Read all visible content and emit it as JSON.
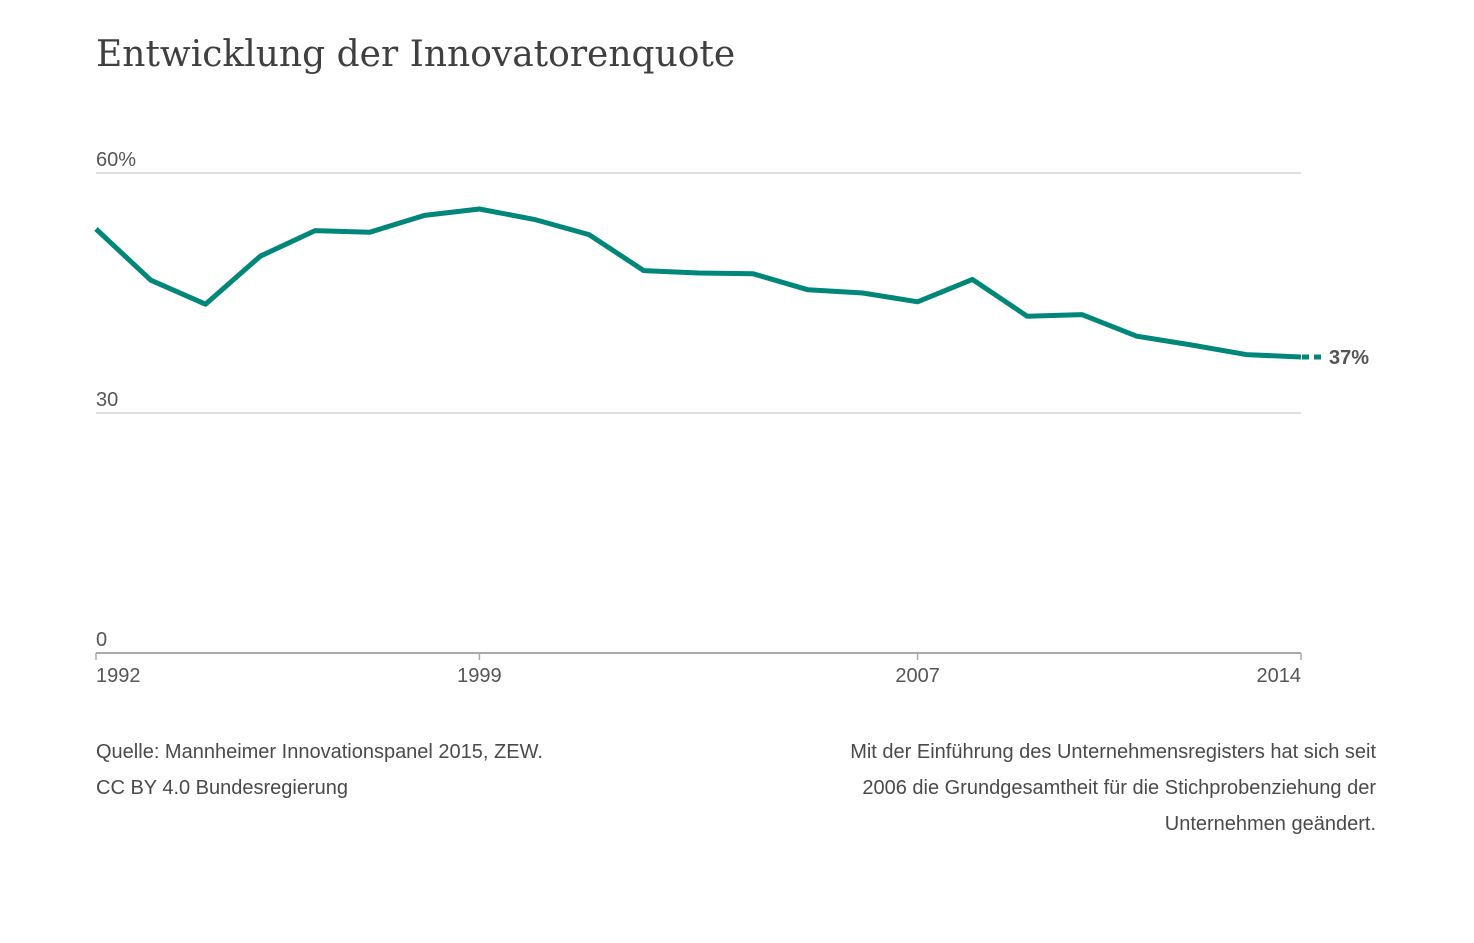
{
  "title": "Entwicklung der Innovatorenquote",
  "chart_data": {
    "type": "line",
    "title": "Entwicklung der Innovatorenquote",
    "xlabel": "",
    "ylabel": "",
    "x": [
      1992,
      1993,
      1994,
      1995,
      1996,
      1997,
      1998,
      1999,
      2000,
      2001,
      2002,
      2003,
      2004,
      2005,
      2006,
      2007,
      2008,
      2009,
      2010,
      2011,
      2012,
      2013,
      2014
    ],
    "series": [
      {
        "values": [
          53.0,
          46.6,
          43.6,
          49.6,
          52.8,
          52.6,
          54.7,
          55.5,
          54.2,
          52.3,
          47.8,
          47.5,
          47.4,
          45.4,
          45.0,
          43.9,
          46.7,
          42.1,
          42.3,
          39.6,
          38.5,
          37.3,
          37.0
        ],
        "color": "#00877a"
      }
    ],
    "xticks": [
      {
        "value": 1992,
        "label": "1992"
      },
      {
        "value": 1999,
        "label": "1999"
      },
      {
        "value": 2007,
        "label": "2007"
      },
      {
        "value": 2014,
        "label": "2014"
      }
    ],
    "yticks": [
      {
        "value": 0,
        "label": "0"
      },
      {
        "value": 30,
        "label": "30"
      },
      {
        "value": 60,
        "label": "60%"
      }
    ],
    "xlim": [
      1992,
      2014
    ],
    "ylim": [
      0,
      60
    ],
    "grid": true,
    "end_label": "37%",
    "line_color": "#00877a",
    "grid_color": "#d4d4d4",
    "axis_color": "#aaaaaa"
  },
  "footer": {
    "source_line1": "Quelle: Mannheimer Innovationspanel 2015, ZEW.",
    "source_line2": "CC BY 4.0 Bundesregierung",
    "note_line1": "Mit der Einführung des Unternehmensregisters hat sich seit",
    "note_line2": "2006 die Grundgesamtheit für die Stichprobenziehung der",
    "note_line3": "Unternehmen geändert."
  }
}
